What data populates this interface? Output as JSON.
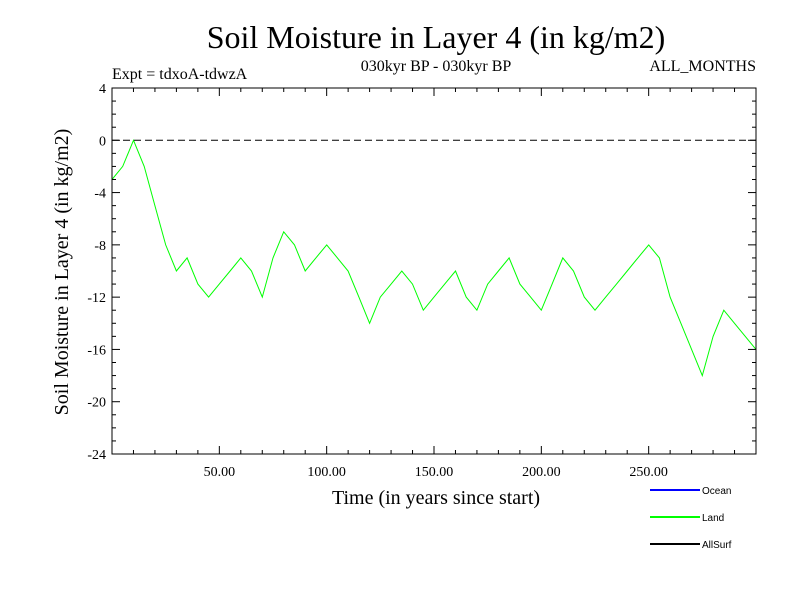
{
  "chart_data": {
    "type": "line",
    "title": "Soil Moisture in Layer 4 (in kg/m2)",
    "subtitle_left": "Expt = tdxoA-tdwzA",
    "subtitle_center": "030kyr BP - 030kyr BP",
    "subtitle_right": "ALL_MONTHS",
    "xlabel": "Time (in years since start)",
    "ylabel": "Soil Moisture in Layer 4 (in kg/m2)",
    "xlim": [
      0,
      300
    ],
    "ylim": [
      -24,
      4
    ],
    "x_ticks": [
      50,
      100,
      150,
      200,
      250
    ],
    "x_tick_labels": [
      "50.00",
      "100.00",
      "150.00",
      "200.00",
      "250.00"
    ],
    "y_ticks": [
      4,
      0,
      -4,
      -8,
      -12,
      -16,
      -20,
      -24
    ],
    "y_tick_labels": [
      "4",
      "0",
      "-4",
      "-8",
      "-12",
      "-16",
      "-20",
      "-24"
    ],
    "reference_line": {
      "y": 0,
      "style": "dashed",
      "color": "#000000"
    },
    "legend": {
      "placement": "bottom-right",
      "entries": [
        {
          "name": "Ocean",
          "color": "#0000ff"
        },
        {
          "name": "Land",
          "color": "#00ff00"
        },
        {
          "name": "AllSurf",
          "color": "#000000"
        }
      ]
    },
    "series": [
      {
        "name": "Land",
        "color": "#00ff00",
        "x": [
          0,
          5,
          10,
          15,
          20,
          25,
          30,
          35,
          40,
          45,
          50,
          55,
          60,
          65,
          70,
          75,
          80,
          85,
          90,
          95,
          100,
          105,
          110,
          115,
          120,
          125,
          130,
          135,
          140,
          145,
          150,
          155,
          160,
          165,
          170,
          175,
          180,
          185,
          190,
          195,
          200,
          205,
          210,
          215,
          220,
          225,
          230,
          235,
          240,
          245,
          250,
          255,
          260,
          265,
          270,
          275,
          280,
          285,
          290,
          295,
          300
        ],
        "y": [
          -3,
          -2,
          0,
          -2,
          -5,
          -8,
          -10,
          -9,
          -11,
          -12,
          -11,
          -10,
          -9,
          -10,
          -12,
          -9,
          -7,
          -8,
          -10,
          -9,
          -8,
          -9,
          -10,
          -12,
          -14,
          -12,
          -11,
          -10,
          -11,
          -13,
          -12,
          -11,
          -10,
          -12,
          -13,
          -11,
          -10,
          -9,
          -11,
          -12,
          -13,
          -11,
          -9,
          -10,
          -12,
          -13,
          -12,
          -11,
          -10,
          -9,
          -8,
          -9,
          -12,
          -14,
          -16,
          -18,
          -15,
          -13,
          -14,
          -15,
          -16
        ]
      }
    ]
  }
}
